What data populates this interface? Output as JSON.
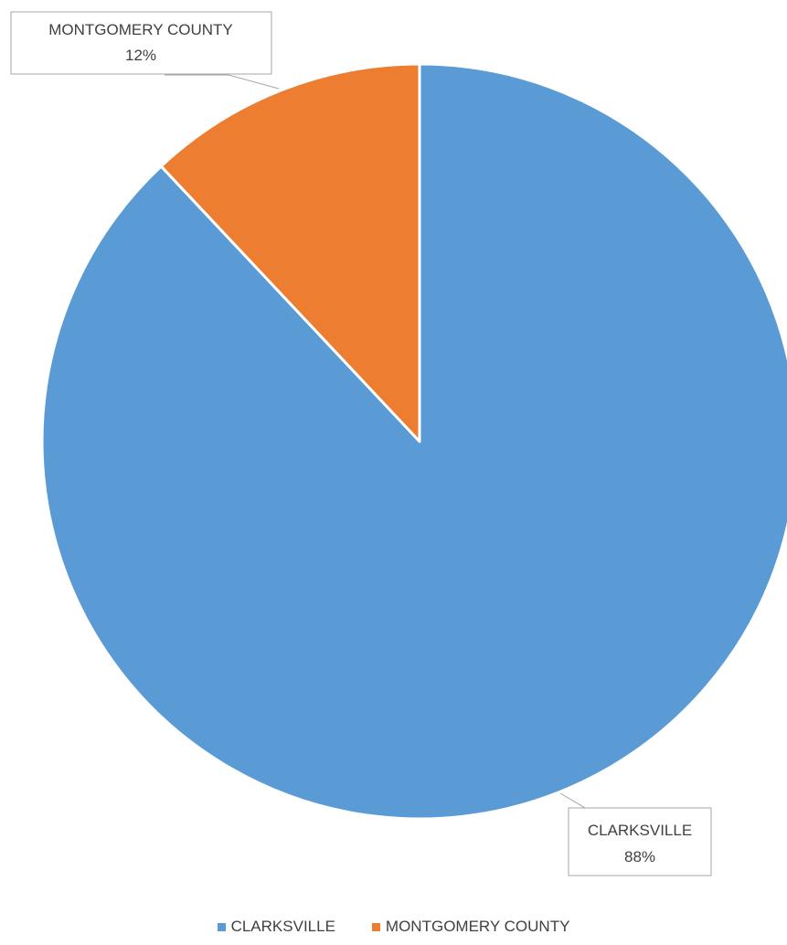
{
  "chart_data": {
    "type": "pie",
    "categories": [
      "CLARKSVILLE",
      "MONTGOMERY COUNTY"
    ],
    "values": [
      88,
      12
    ],
    "unit": "%",
    "data_labels": [
      {
        "category": "CLARKSVILLE",
        "value_text": "88%"
      },
      {
        "category": "MONTGOMERY COUNTY",
        "value_text": "12%"
      }
    ],
    "colors": [
      "#5b9bd5",
      "#ed7d31"
    ],
    "legend_position": "bottom",
    "title": ""
  },
  "legend": {
    "items": [
      {
        "label": "CLARKSVILLE",
        "color": "#5b9bd5"
      },
      {
        "label": "MONTGOMERY COUNTY",
        "color": "#ed7d31"
      }
    ]
  }
}
